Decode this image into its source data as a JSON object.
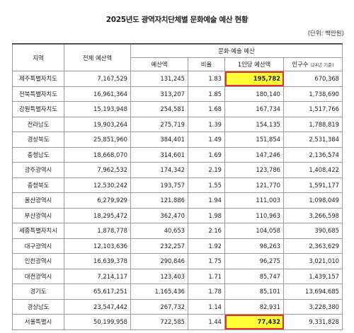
{
  "title": "2025년도 광역자치단체별 문화예술 예산 현황",
  "unit": "(단위: 백만원)",
  "headers": {
    "region": "지역",
    "total_budget": "전체 예산액",
    "culture_group": "문화·예술 예산",
    "budget": "예산액",
    "ratio": "비율",
    "per_capita": "1인당 예산액",
    "population": "인구수",
    "population_note": "(24년 기준)"
  },
  "highlight_color": "#ffff33",
  "rows": [
    {
      "region": "제주특별자치도",
      "total": "7,167,529",
      "budget": "131,245",
      "ratio": "1.83",
      "per_capita": "195,782",
      "population": "670,368",
      "highlight": true
    },
    {
      "region": "전북특별자치도",
      "total": "16,961,364",
      "budget": "313,207",
      "ratio": "1.85",
      "per_capita": "180,140",
      "population": "1,738,690",
      "highlight": false
    },
    {
      "region": "강원특별자치도",
      "total": "15,193,948",
      "budget": "254,581",
      "ratio": "1.68",
      "per_capita": "167,734",
      "population": "1,517,766",
      "highlight": false
    },
    {
      "region": "전라남도",
      "total": "19,903,264",
      "budget": "275,719",
      "ratio": "1.39",
      "per_capita": "154,135",
      "population": "1,788,819",
      "highlight": false
    },
    {
      "region": "경상북도",
      "total": "25,851,960",
      "budget": "384,401",
      "ratio": "1.49",
      "per_capita": "151,854",
      "population": "2,531,384",
      "highlight": false
    },
    {
      "region": "충청남도",
      "total": "18,668,070",
      "budget": "314,601",
      "ratio": "1.69",
      "per_capita": "147,246",
      "population": "2,136,574",
      "highlight": false
    },
    {
      "region": "광주광역시",
      "total": "7,962,532",
      "budget": "174,342",
      "ratio": "2.19",
      "per_capita": "123,786",
      "population": "1,408,422",
      "highlight": false
    },
    {
      "region": "충청북도",
      "total": "12,530,242",
      "budget": "193,757",
      "ratio": "1.55",
      "per_capita": "121,770",
      "population": "1,591,177",
      "highlight": false
    },
    {
      "region": "울산광역시",
      "total": "6,279,929",
      "budget": "121,886",
      "ratio": "1.94",
      "per_capita": "111,003",
      "population": "1,098,049",
      "highlight": false
    },
    {
      "region": "부산광역시",
      "total": "18,295,472",
      "budget": "362,470",
      "ratio": "1.98",
      "per_capita": "110,963",
      "population": "3,266,598",
      "highlight": false
    },
    {
      "region": "세종특별자치시",
      "total": "1,878,778",
      "budget": "40,653",
      "ratio": "2.16",
      "per_capita": "104,058",
      "population": "390,685",
      "highlight": false
    },
    {
      "region": "대구광역시",
      "total": "12,103,636",
      "budget": "232,257",
      "ratio": "1.92",
      "per_capita": "98,263",
      "population": "2,363,629",
      "highlight": false
    },
    {
      "region": "인천광역시",
      "total": "16,639,378",
      "budget": "290,846",
      "ratio": "1.75",
      "per_capita": "96,275",
      "population": "3,021,010",
      "highlight": false
    },
    {
      "region": "대전광역시",
      "total": "7,214,117",
      "budget": "123,403",
      "ratio": "1.71",
      "per_capita": "85,747",
      "population": "1,439,157",
      "highlight": false
    },
    {
      "region": "경기도",
      "total": "65,617,251",
      "budget": "1,165,436",
      "ratio": "1.78",
      "per_capita": "85,101",
      "population": "13,694,685",
      "highlight": false
    },
    {
      "region": "경상남도",
      "total": "23,547,442",
      "budget": "267,732",
      "ratio": "1.14",
      "per_capita": "82,931",
      "population": "3,228,380",
      "highlight": false
    },
    {
      "region": "서울특별시",
      "total": "50,199,958",
      "budget": "722,585",
      "ratio": "1.44",
      "per_capita": "77,432",
      "population": "9,331,828",
      "highlight": true
    }
  ]
}
